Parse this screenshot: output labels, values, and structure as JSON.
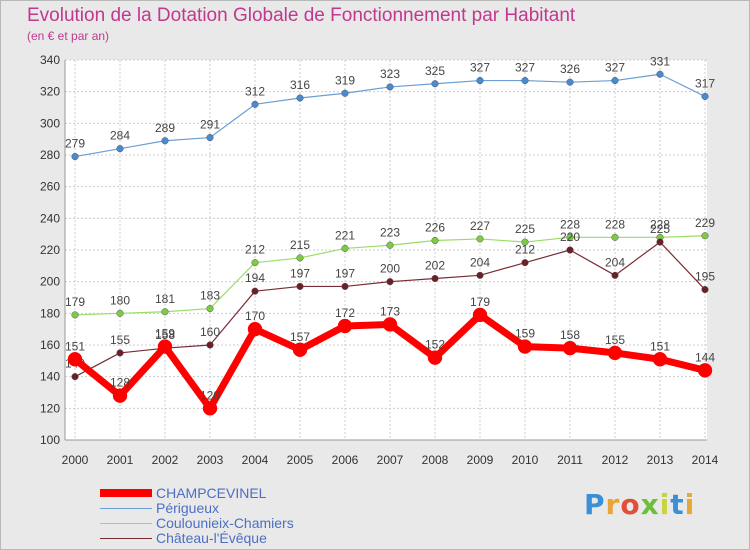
{
  "title": "Evolution de la Dotation Globale de Fonctionnement par Habitant",
  "subtitle": "(en € et par an)",
  "logo": {
    "letters": [
      "P",
      "r",
      "o",
      "x",
      "i",
      "t",
      "i"
    ]
  },
  "chart_data": {
    "type": "line",
    "x": [
      "2000",
      "2001",
      "2002",
      "2003",
      "2004",
      "2005",
      "2006",
      "2007",
      "2008",
      "2009",
      "2010",
      "2011",
      "2012",
      "2013",
      "2014"
    ],
    "ylim": [
      100,
      340
    ],
    "yticks": [
      100,
      120,
      140,
      160,
      180,
      200,
      220,
      240,
      260,
      280,
      300,
      320,
      340
    ],
    "grid": true,
    "legend_position": "bottom-left",
    "series": [
      {
        "name": "CHAMPCEVINEL",
        "color": "#ff0000",
        "values": [
          151,
          128,
          159,
          120,
          170,
          157,
          172,
          173,
          152,
          179,
          159,
          158,
          155,
          151,
          144
        ]
      },
      {
        "name": "Périgueux",
        "color": "#6a9fd4",
        "values": [
          279,
          284,
          289,
          291,
          312,
          316,
          319,
          323,
          325,
          327,
          327,
          326,
          327,
          331,
          317
        ]
      },
      {
        "name": "Coulounieix-Chamiers",
        "color": "#99dd66",
        "values": [
          179,
          180,
          181,
          183,
          212,
          215,
          221,
          223,
          226,
          227,
          225,
          228,
          228,
          228,
          229
        ]
      },
      {
        "name": "Château-l'Évêque",
        "color": "#7a2c34",
        "values": [
          140,
          155,
          158,
          160,
          194,
          197,
          197,
          200,
          202,
          204,
          212,
          220,
          204,
          225,
          195
        ]
      }
    ]
  }
}
